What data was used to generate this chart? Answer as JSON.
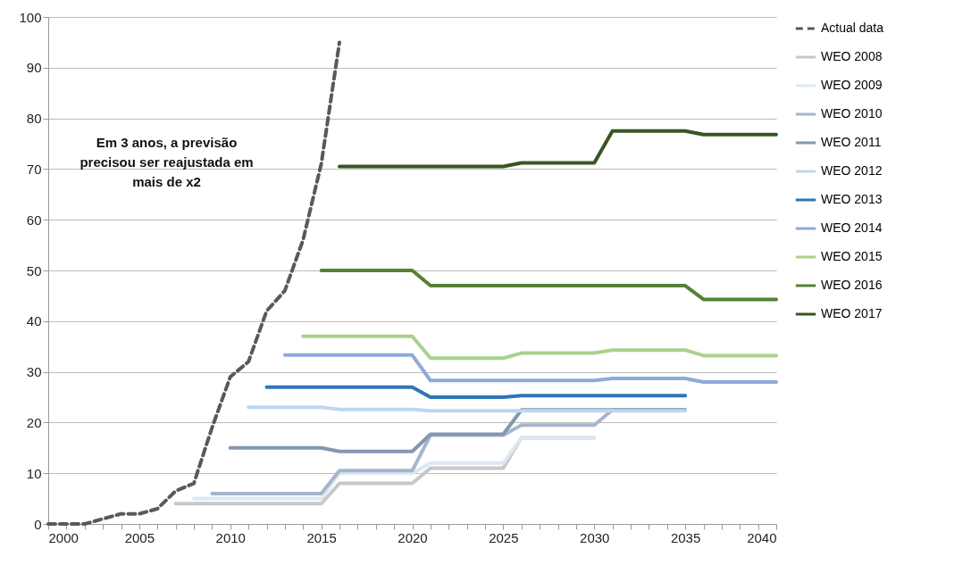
{
  "chart_data": {
    "type": "line",
    "xlim": [
      2000,
      2040
    ],
    "xticks": [
      2000,
      {
        "value": 2001,
        "label": null
      },
      {
        "value": 2002,
        "label": null
      },
      {
        "value": 2003,
        "label": null
      },
      {
        "value": 2004,
        "label": null
      },
      2005,
      {
        "value": 2006,
        "label": null
      },
      {
        "value": 2007,
        "label": null
      },
      {
        "value": 2008,
        "label": null
      },
      {
        "value": 2009,
        "label": null
      },
      2010,
      {
        "value": 2011,
        "label": null
      },
      {
        "value": 2012,
        "label": null
      },
      {
        "value": 2013,
        "label": null
      },
      {
        "value": 2014,
        "label": null
      },
      2015,
      {
        "value": 2016,
        "label": null
      },
      {
        "value": 2017,
        "label": null
      },
      {
        "value": 2018,
        "label": null
      },
      {
        "value": 2019,
        "label": null
      },
      2020,
      {
        "value": 2021,
        "label": null
      },
      {
        "value": 2022,
        "label": null
      },
      {
        "value": 2023,
        "label": null
      },
      {
        "value": 2024,
        "label": null
      },
      2025,
      {
        "value": 2026,
        "label": null
      },
      {
        "value": 2027,
        "label": null
      },
      {
        "value": 2028,
        "label": null
      },
      {
        "value": 2029,
        "label": null
      },
      2030,
      {
        "value": 2031,
        "label": null
      },
      {
        "value": 2032,
        "label": null
      },
      {
        "value": 2033,
        "label": null
      },
      {
        "value": 2034,
        "label": null
      },
      2035,
      {
        "value": 2036,
        "label": null
      },
      {
        "value": 2037,
        "label": null
      },
      {
        "value": 2038,
        "label": null
      },
      {
        "value": 2039,
        "label": null
      },
      2040
    ],
    "ylim": [
      0,
      100
    ],
    "yticks": [
      0,
      10,
      20,
      30,
      40,
      50,
      60,
      70,
      80,
      90,
      100
    ],
    "grid": "y",
    "legend": "right",
    "marker": "none",
    "annotations": [
      "Em 3 anos, a previsão precisou ser reajustada em mais de x2"
    ],
    "series": [
      {
        "name": "Actual data",
        "color": "#595959",
        "line_style": "dashed",
        "x": [
          2000,
          2001,
          2002,
          2003,
          2004,
          2005,
          2006,
          2007,
          2008,
          2009,
          2010,
          2011,
          2012,
          2013,
          2014,
          2015,
          2016
        ],
        "values": [
          0,
          0,
          0,
          1,
          2,
          2,
          3,
          6.5,
          8,
          19,
          29,
          32,
          42,
          46,
          56,
          71,
          95
        ]
      },
      {
        "name": "WEO 2008",
        "color": "#c8c8c8",
        "x": [
          2007,
          2015,
          2016,
          2020,
          2021,
          2025,
          2026,
          2030
        ],
        "values": [
          4,
          4,
          8,
          8,
          11,
          11,
          17,
          17
        ]
      },
      {
        "name": "WEO 2009",
        "color": "#dce8f5",
        "x": [
          2008,
          2015,
          2016,
          2020,
          2021,
          2025,
          2026,
          2030
        ],
        "values": [
          5,
          5,
          10,
          10,
          12,
          12,
          17,
          17
        ]
      },
      {
        "name": "WEO 2010",
        "color": "#a6b5cc",
        "x": [
          2009,
          2015,
          2016,
          2020,
          2021,
          2025,
          2026,
          2030,
          2031,
          2035
        ],
        "values": [
          6,
          6,
          10.5,
          10.5,
          17.5,
          17.5,
          19.5,
          19.5,
          22.5,
          22.5
        ]
      },
      {
        "name": "WEO 2011",
        "color": "#8497b0",
        "x": [
          2010,
          2015,
          2016,
          2020,
          2021,
          2025,
          2026,
          2035
        ],
        "values": [
          15,
          15,
          14.3,
          14.3,
          17.7,
          17.7,
          22.5,
          22.5
        ]
      },
      {
        "name": "WEO 2012",
        "color": "#bdd7ee",
        "x": [
          2011,
          2015,
          2016,
          2020,
          2021,
          2035
        ],
        "values": [
          23,
          23,
          22.6,
          22.6,
          22.3,
          22.3
        ]
      },
      {
        "name": "WEO 2013",
        "color": "#2e75b6",
        "x": [
          2012,
          2020,
          2021,
          2025,
          2026,
          2035
        ],
        "values": [
          27,
          27,
          25,
          25,
          25.3,
          25.3
        ]
      },
      {
        "name": "WEO 2014",
        "color": "#8eaadb",
        "x": [
          2013,
          2020,
          2021,
          2030,
          2031,
          2035,
          2036,
          2040
        ],
        "values": [
          33.3,
          33.3,
          28.3,
          28.3,
          28.7,
          28.7,
          28,
          28
        ]
      },
      {
        "name": "WEO 2015",
        "color": "#a9d18e",
        "x": [
          2014,
          2020,
          2021,
          2025,
          2026,
          2030,
          2031,
          2035,
          2036,
          2040
        ],
        "values": [
          37,
          37,
          32.7,
          32.7,
          33.7,
          33.7,
          34.3,
          34.3,
          33.2,
          33.2
        ]
      },
      {
        "name": "WEO 2016",
        "color": "#548235",
        "x": [
          2015,
          2020,
          2021,
          2035,
          2036,
          2040
        ],
        "values": [
          50,
          50,
          47,
          47,
          44.3,
          44.3
        ]
      },
      {
        "name": "WEO 2017",
        "color": "#375623",
        "x": [
          2016,
          2025,
          2026,
          2030,
          2031,
          2035,
          2036,
          2040
        ],
        "values": [
          70.5,
          70.5,
          71.2,
          71.2,
          77.5,
          77.5,
          76.8,
          76.8
        ]
      }
    ]
  }
}
